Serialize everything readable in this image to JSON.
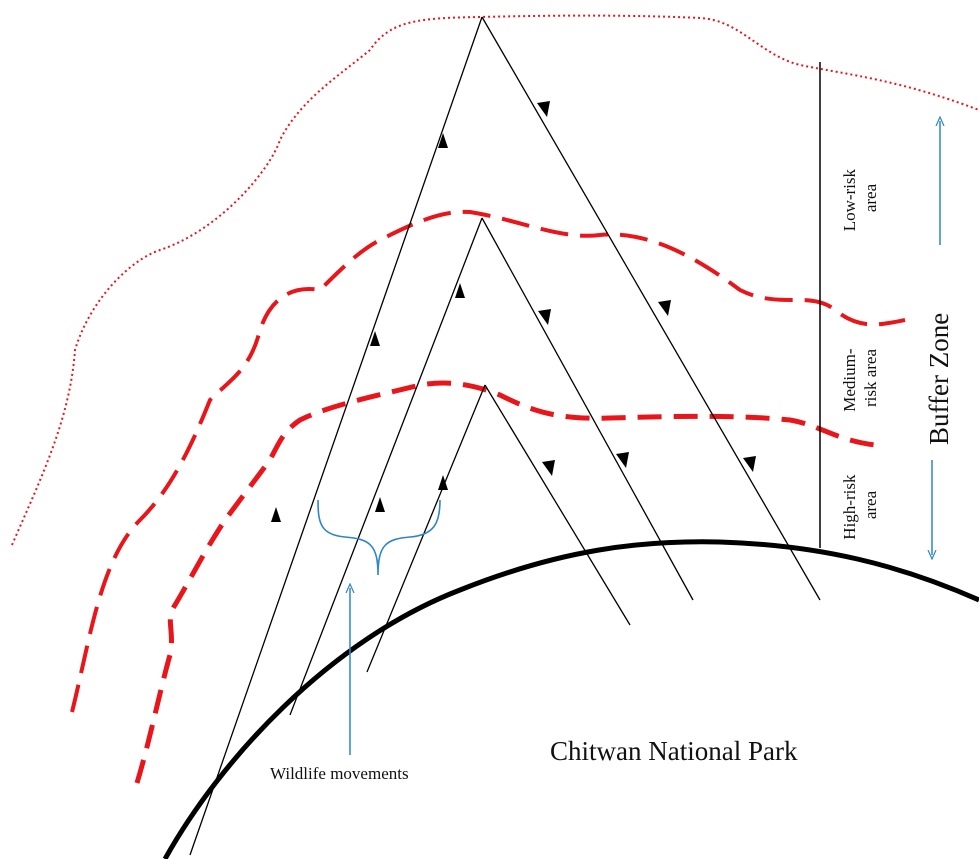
{
  "labels": {
    "park": "Chitwan National Park",
    "wildlife": "Wildlife movements",
    "buffer_zone": "Buffer Zone",
    "low_risk": [
      "Low-risk",
      "area"
    ],
    "medium_risk": [
      "Medium-",
      "risk area"
    ],
    "high_risk": [
      "High-risk",
      "area"
    ]
  },
  "colors": {
    "risk_boundary": "#e8161b",
    "annotation": "#2e86c9",
    "line": "#000000"
  }
}
